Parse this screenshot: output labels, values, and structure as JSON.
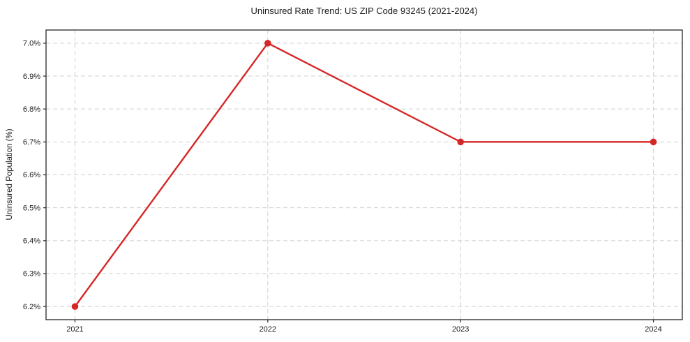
{
  "chart_data": {
    "type": "line",
    "title": "Uninsured Rate Trend: US ZIP Code 93245 (2021-2024)",
    "xlabel": "",
    "ylabel": "Uninsured Population (%)",
    "categories": [
      "2021",
      "2022",
      "2023",
      "2024"
    ],
    "values": [
      6.2,
      7.0,
      6.7,
      6.7
    ],
    "yticks": [
      6.2,
      6.3,
      6.4,
      6.5,
      6.6,
      6.7,
      6.8,
      6.9,
      7.0
    ],
    "ytick_labels": [
      "6.2%",
      "6.3%",
      "6.4%",
      "6.5%",
      "6.6%",
      "6.7%",
      "6.8%",
      "6.9%",
      "7.0%"
    ],
    "ylim": [
      6.16,
      7.04
    ],
    "grid": true,
    "legend_position": "none",
    "colors": {
      "line": "#d62728",
      "marker": "#d62728",
      "grid": "#cfcfcf",
      "spine": "#262626",
      "text": "#1a1a1a"
    }
  }
}
